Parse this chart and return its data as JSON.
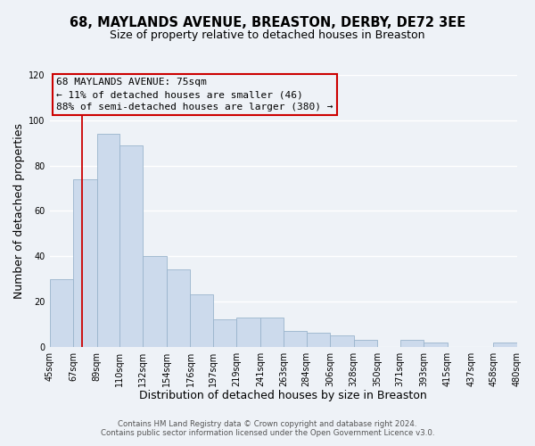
{
  "title": "68, MAYLANDS AVENUE, BREASTON, DERBY, DE72 3EE",
  "subtitle": "Size of property relative to detached houses in Breaston",
  "xlabel": "Distribution of detached houses by size in Breaston",
  "ylabel": "Number of detached properties",
  "bar_left_edges": [
    45,
    67,
    89,
    110,
    132,
    154,
    176,
    197,
    219,
    241,
    263,
    284,
    306,
    328,
    350,
    371,
    393,
    415,
    437,
    458
  ],
  "bar_heights": [
    30,
    74,
    94,
    89,
    40,
    34,
    23,
    12,
    13,
    13,
    7,
    6,
    5,
    3,
    0,
    3,
    2,
    0,
    0,
    2
  ],
  "bar_widths": [
    22,
    22,
    21,
    22,
    22,
    22,
    21,
    22,
    22,
    22,
    21,
    22,
    22,
    22,
    21,
    22,
    22,
    22,
    21,
    22
  ],
  "bar_color": "#ccdaec",
  "bar_edgecolor": "#9ab4cc",
  "reference_line_x": 75,
  "reference_line_color": "#cc0000",
  "xlim": [
    45,
    480
  ],
  "ylim": [
    0,
    120
  ],
  "yticks": [
    0,
    20,
    40,
    60,
    80,
    100,
    120
  ],
  "xtick_labels": [
    "45sqm",
    "67sqm",
    "89sqm",
    "110sqm",
    "132sqm",
    "154sqm",
    "176sqm",
    "197sqm",
    "219sqm",
    "241sqm",
    "263sqm",
    "284sqm",
    "306sqm",
    "328sqm",
    "350sqm",
    "371sqm",
    "393sqm",
    "415sqm",
    "437sqm",
    "458sqm",
    "480sqm"
  ],
  "xtick_positions": [
    45,
    67,
    89,
    110,
    132,
    154,
    176,
    197,
    219,
    241,
    263,
    284,
    306,
    328,
    350,
    371,
    393,
    415,
    437,
    458,
    480
  ],
  "annotation_title": "68 MAYLANDS AVENUE: 75sqm",
  "annotation_line1": "← 11% of detached houses are smaller (46)",
  "annotation_line2": "88% of semi-detached houses are larger (380) →",
  "footer_line1": "Contains HM Land Registry data © Crown copyright and database right 2024.",
  "footer_line2": "Contains public sector information licensed under the Open Government Licence v3.0.",
  "bg_color": "#eef2f7",
  "grid_color": "#ffffff",
  "title_fontsize": 10.5,
  "subtitle_fontsize": 9,
  "axis_label_fontsize": 9,
  "tick_fontsize": 7,
  "annotation_fontsize": 8,
  "footer_fontsize": 6.2
}
